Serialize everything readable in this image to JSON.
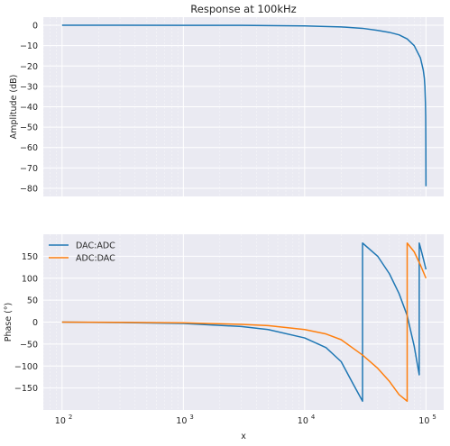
{
  "chart_data": [
    {
      "type": "line",
      "title": "Response at 100kHz",
      "xlabel": "",
      "ylabel": "Amplitude (dB)",
      "xscale": "log",
      "xlim": [
        70,
        140000
      ],
      "ylim": [
        -84,
        4
      ],
      "yticks": [
        0,
        -10,
        -20,
        -30,
        -40,
        -50,
        -60,
        -70,
        -80
      ],
      "ytick_labels": [
        "0",
        "−10",
        "−20",
        "−30",
        "−40",
        "−50",
        "−60",
        "−70",
        "−80"
      ],
      "grid": true,
      "colors": [
        "#1f77b4"
      ],
      "series": [
        {
          "x": [
            100,
            300,
            1000,
            3000,
            10000,
            20000,
            30000,
            40000,
            50000,
            60000,
            70000,
            80000,
            90000,
            95000,
            97000,
            98000,
            99000,
            99500,
            99800,
            100000
          ],
          "y": [
            0,
            0,
            -0.01,
            -0.05,
            -0.3,
            -0.8,
            -1.5,
            -2.5,
            -3.5,
            -4.7,
            -6.7,
            -10,
            -16,
            -22,
            -26,
            -30,
            -38,
            -45,
            -60,
            -79
          ]
        }
      ]
    },
    {
      "type": "line",
      "title": "",
      "xlabel": "x",
      "ylabel": "Phase (°)",
      "xscale": "log",
      "xlim": [
        70,
        140000
      ],
      "ylim": [
        -200,
        200
      ],
      "xticks": [
        100,
        1000,
        10000,
        100000
      ],
      "xtick_labels": [
        [
          "10",
          "2"
        ],
        [
          "10",
          "3"
        ],
        [
          "10",
          "4"
        ],
        [
          "10",
          "5"
        ]
      ],
      "yticks": [
        150,
        100,
        50,
        0,
        -50,
        -100,
        -150
      ],
      "ytick_labels": [
        "150",
        "100",
        "50",
        "0",
        "−50",
        "−100",
        "−150"
      ],
      "grid": true,
      "legend": "top-left",
      "series": [
        {
          "name": "DAC:ADC",
          "color": "#1f77b4",
          "x": [
            100,
            300,
            1000,
            3000,
            5000,
            10000,
            15000,
            20000,
            25000,
            30000,
            30000,
            40000,
            50000,
            60000,
            70000,
            80000,
            88000,
            88000,
            92000,
            96000,
            100000
          ],
          "y": [
            0,
            -1,
            -3,
            -10,
            -17,
            -36,
            -58,
            -90,
            -140,
            -180,
            180,
            150,
            110,
            65,
            15,
            -55,
            -120,
            180,
            160,
            140,
            120
          ]
        },
        {
          "name": "ADC:DAC",
          "color": "#ff7f0e",
          "x": [
            100,
            300,
            1000,
            3000,
            5000,
            10000,
            15000,
            20000,
            30000,
            40000,
            50000,
            60000,
            70000,
            70000,
            80000,
            90000,
            100000
          ],
          "y": [
            0,
            -0.5,
            -1.5,
            -5,
            -8,
            -17,
            -27,
            -40,
            -75,
            -105,
            -135,
            -165,
            -180,
            180,
            160,
            130,
            100
          ]
        }
      ]
    }
  ]
}
